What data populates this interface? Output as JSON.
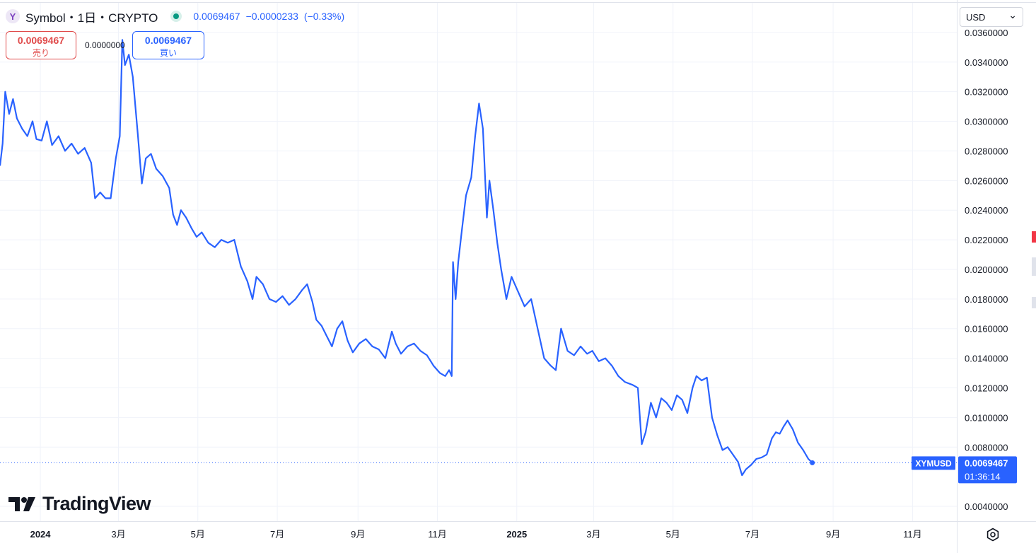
{
  "header": {
    "logo_glyph": "Y",
    "title": "Symbol・1日・CRYPTO",
    "price": "0.0069467",
    "change": "−0.0000233",
    "change_pct": "(−0.33%)",
    "quote_color": "#2962ff",
    "live_color": "#089981"
  },
  "trade": {
    "sell_price": "0.0069467",
    "sell_label": "売り",
    "spread": "0.0000000",
    "buy_price": "0.0069467",
    "buy_label": "買い",
    "sell_color": "#e04a4a",
    "buy_color": "#2962ff"
  },
  "currency_select": {
    "value": "USD",
    "chevron": "⌄"
  },
  "branding": {
    "name": "TradingView"
  },
  "last_price_label": {
    "symbol": "XYMUSD",
    "price": "0.0069467",
    "countdown": "01:36:14",
    "color": "#2962ff"
  },
  "chart_data": {
    "type": "line",
    "series": [
      {
        "color": "#2962ff",
        "points": [
          [
            "2023-12-01",
            0.027
          ],
          [
            "2023-12-03",
            0.0285
          ],
          [
            "2023-12-05",
            0.032
          ],
          [
            "2023-12-08",
            0.0305
          ],
          [
            "2023-12-11",
            0.0315
          ],
          [
            "2023-12-14",
            0.0302
          ],
          [
            "2023-12-18",
            0.0295
          ],
          [
            "2023-12-22",
            0.029
          ],
          [
            "2023-12-26",
            0.03
          ],
          [
            "2023-12-29",
            0.0288
          ],
          [
            "2024-01-02",
            0.0287
          ],
          [
            "2024-01-06",
            0.03
          ],
          [
            "2024-01-10",
            0.0284
          ],
          [
            "2024-01-15",
            0.029
          ],
          [
            "2024-01-20",
            0.028
          ],
          [
            "2024-01-25",
            0.0285
          ],
          [
            "2024-01-30",
            0.0278
          ],
          [
            "2024-02-04",
            0.0282
          ],
          [
            "2024-02-09",
            0.0272
          ],
          [
            "2024-02-12",
            0.0248
          ],
          [
            "2024-02-16",
            0.0252
          ],
          [
            "2024-02-20",
            0.0248
          ],
          [
            "2024-02-24",
            0.0248
          ],
          [
            "2024-02-28",
            0.0275
          ],
          [
            "2024-03-02",
            0.029
          ],
          [
            "2024-03-04",
            0.0355
          ],
          [
            "2024-03-06",
            0.0338
          ],
          [
            "2024-03-09",
            0.0345
          ],
          [
            "2024-03-12",
            0.033
          ],
          [
            "2024-03-16",
            0.029
          ],
          [
            "2024-03-19",
            0.0258
          ],
          [
            "2024-03-22",
            0.0275
          ],
          [
            "2024-03-26",
            0.0278
          ],
          [
            "2024-03-30",
            0.0268
          ],
          [
            "2024-04-04",
            0.0263
          ],
          [
            "2024-04-09",
            0.0255
          ],
          [
            "2024-04-12",
            0.0237
          ],
          [
            "2024-04-15",
            0.023
          ],
          [
            "2024-04-18",
            0.024
          ],
          [
            "2024-04-22",
            0.0235
          ],
          [
            "2024-04-26",
            0.0228
          ],
          [
            "2024-04-30",
            0.0222
          ],
          [
            "2024-05-04",
            0.0225
          ],
          [
            "2024-05-09",
            0.0218
          ],
          [
            "2024-05-14",
            0.0215
          ],
          [
            "2024-05-19",
            0.022
          ],
          [
            "2024-05-24",
            0.0218
          ],
          [
            "2024-05-29",
            0.022
          ],
          [
            "2024-06-03",
            0.0202
          ],
          [
            "2024-06-08",
            0.0192
          ],
          [
            "2024-06-12",
            0.018
          ],
          [
            "2024-06-15",
            0.0195
          ],
          [
            "2024-06-20",
            0.019
          ],
          [
            "2024-06-25",
            0.018
          ],
          [
            "2024-06-30",
            0.0178
          ],
          [
            "2024-07-05",
            0.0182
          ],
          [
            "2024-07-10",
            0.0176
          ],
          [
            "2024-07-15",
            0.018
          ],
          [
            "2024-07-20",
            0.0186
          ],
          [
            "2024-07-24",
            0.019
          ],
          [
            "2024-07-28",
            0.0178
          ],
          [
            "2024-07-31",
            0.0166
          ],
          [
            "2024-08-04",
            0.0162
          ],
          [
            "2024-08-08",
            0.0155
          ],
          [
            "2024-08-12",
            0.0148
          ],
          [
            "2024-08-16",
            0.016
          ],
          [
            "2024-08-20",
            0.0165
          ],
          [
            "2024-08-24",
            0.0152
          ],
          [
            "2024-08-28",
            0.0144
          ],
          [
            "2024-09-02",
            0.015
          ],
          [
            "2024-09-07",
            0.0153
          ],
          [
            "2024-09-12",
            0.0148
          ],
          [
            "2024-09-17",
            0.0146
          ],
          [
            "2024-09-22",
            0.014
          ],
          [
            "2024-09-27",
            0.0158
          ],
          [
            "2024-09-30",
            0.015
          ],
          [
            "2024-10-04",
            0.0143
          ],
          [
            "2024-10-09",
            0.0148
          ],
          [
            "2024-10-14",
            0.015
          ],
          [
            "2024-10-19",
            0.0145
          ],
          [
            "2024-10-24",
            0.0142
          ],
          [
            "2024-10-29",
            0.0135
          ],
          [
            "2024-11-03",
            0.013
          ],
          [
            "2024-11-07",
            0.0128
          ],
          [
            "2024-11-10",
            0.0132
          ],
          [
            "2024-11-12",
            0.0128
          ],
          [
            "2024-11-13",
            0.0205
          ],
          [
            "2024-11-15",
            0.018
          ],
          [
            "2024-11-17",
            0.0205
          ],
          [
            "2024-11-20",
            0.0228
          ],
          [
            "2024-11-23",
            0.025
          ],
          [
            "2024-11-27",
            0.0262
          ],
          [
            "2024-11-30",
            0.029
          ],
          [
            "2024-12-03",
            0.0312
          ],
          [
            "2024-12-06",
            0.0295
          ],
          [
            "2024-12-09",
            0.0235
          ],
          [
            "2024-12-11",
            0.026
          ],
          [
            "2024-12-14",
            0.024
          ],
          [
            "2024-12-17",
            0.0218
          ],
          [
            "2024-12-20",
            0.02
          ],
          [
            "2024-12-24",
            0.018
          ],
          [
            "2024-12-28",
            0.0195
          ],
          [
            "2025-01-02",
            0.0185
          ],
          [
            "2025-01-07",
            0.0175
          ],
          [
            "2025-01-12",
            0.018
          ],
          [
            "2025-01-17",
            0.016
          ],
          [
            "2025-01-22",
            0.014
          ],
          [
            "2025-01-27",
            0.0135
          ],
          [
            "2025-01-31",
            0.0132
          ],
          [
            "2025-02-04",
            0.016
          ],
          [
            "2025-02-09",
            0.0145
          ],
          [
            "2025-02-14",
            0.0142
          ],
          [
            "2025-02-19",
            0.0148
          ],
          [
            "2025-02-24",
            0.0143
          ],
          [
            "2025-02-28",
            0.0145
          ],
          [
            "2025-03-05",
            0.0138
          ],
          [
            "2025-03-10",
            0.014
          ],
          [
            "2025-03-15",
            0.0135
          ],
          [
            "2025-03-20",
            0.0128
          ],
          [
            "2025-03-25",
            0.0124
          ],
          [
            "2025-03-31",
            0.0122
          ],
          [
            "2025-04-04",
            0.012
          ],
          [
            "2025-04-07",
            0.0082
          ],
          [
            "2025-04-10",
            0.009
          ],
          [
            "2025-04-14",
            0.011
          ],
          [
            "2025-04-18",
            0.01
          ],
          [
            "2025-04-22",
            0.0113
          ],
          [
            "2025-04-26",
            0.011
          ],
          [
            "2025-04-30",
            0.0105
          ],
          [
            "2025-05-04",
            0.0115
          ],
          [
            "2025-05-08",
            0.0112
          ],
          [
            "2025-05-12",
            0.0103
          ],
          [
            "2025-05-16",
            0.012
          ],
          [
            "2025-05-19",
            0.0128
          ],
          [
            "2025-05-23",
            0.0125
          ],
          [
            "2025-05-27",
            0.0127
          ],
          [
            "2025-05-31",
            0.01
          ],
          [
            "2025-06-04",
            0.0088
          ],
          [
            "2025-06-08",
            0.0078
          ],
          [
            "2025-06-12",
            0.008
          ],
          [
            "2025-06-16",
            0.0075
          ],
          [
            "2025-06-20",
            0.007
          ],
          [
            "2025-06-23",
            0.0061
          ],
          [
            "2025-06-26",
            0.0065
          ],
          [
            "2025-06-30",
            0.0068
          ],
          [
            "2025-07-04",
            0.0072
          ],
          [
            "2025-07-08",
            0.0073
          ],
          [
            "2025-07-12",
            0.0075
          ],
          [
            "2025-07-16",
            0.0086
          ],
          [
            "2025-07-19",
            0.009
          ],
          [
            "2025-07-22",
            0.0089
          ],
          [
            "2025-07-25",
            0.0094
          ],
          [
            "2025-07-28",
            0.0098
          ],
          [
            "2025-08-01",
            0.0092
          ],
          [
            "2025-08-05",
            0.0083
          ],
          [
            "2025-08-09",
            0.0078
          ],
          [
            "2025-08-13",
            0.0072
          ],
          [
            "2025-08-16",
            0.0069467
          ]
        ]
      }
    ],
    "x_ticks": [
      {
        "date": "2024-01-01",
        "label": "2024",
        "bold": true
      },
      {
        "date": "2024-03-01",
        "label": "3月"
      },
      {
        "date": "2024-05-01",
        "label": "5月"
      },
      {
        "date": "2024-07-01",
        "label": "7月"
      },
      {
        "date": "2024-09-01",
        "label": "9月"
      },
      {
        "date": "2024-11-01",
        "label": "11月"
      },
      {
        "date": "2025-01-01",
        "label": "2025",
        "bold": true
      },
      {
        "date": "2025-03-01",
        "label": "3月"
      },
      {
        "date": "2025-05-01",
        "label": "5月"
      },
      {
        "date": "2025-07-01",
        "label": "7月"
      },
      {
        "date": "2025-09-01",
        "label": "9月"
      },
      {
        "date": "2025-11-01",
        "label": "11月"
      }
    ],
    "y_ticks": [
      {
        "value": 0.036,
        "label": "0.0360000"
      },
      {
        "value": 0.034,
        "label": "0.0340000"
      },
      {
        "value": 0.032,
        "label": "0.0320000"
      },
      {
        "value": 0.03,
        "label": "0.0300000"
      },
      {
        "value": 0.028,
        "label": "0.0280000"
      },
      {
        "value": 0.026,
        "label": "0.0260000"
      },
      {
        "value": 0.024,
        "label": "0.0240000"
      },
      {
        "value": 0.022,
        "label": "0.0220000"
      },
      {
        "value": 0.02,
        "label": "0.0200000"
      },
      {
        "value": 0.018,
        "label": "0.0180000"
      },
      {
        "value": 0.016,
        "label": "0.0160000"
      },
      {
        "value": 0.014,
        "label": "0.0140000"
      },
      {
        "value": 0.012,
        "label": "0.0120000"
      },
      {
        "value": 0.01,
        "label": "0.0100000"
      },
      {
        "value": 0.008,
        "label": "0.0080000"
      },
      {
        "value": 0.004,
        "label": "0.0040000"
      }
    ],
    "ylim": [
      0.003,
      0.038
    ],
    "xlim": [
      "2023-12-01",
      "2025-12-05"
    ],
    "last_value": 0.0069467,
    "grid": true
  }
}
